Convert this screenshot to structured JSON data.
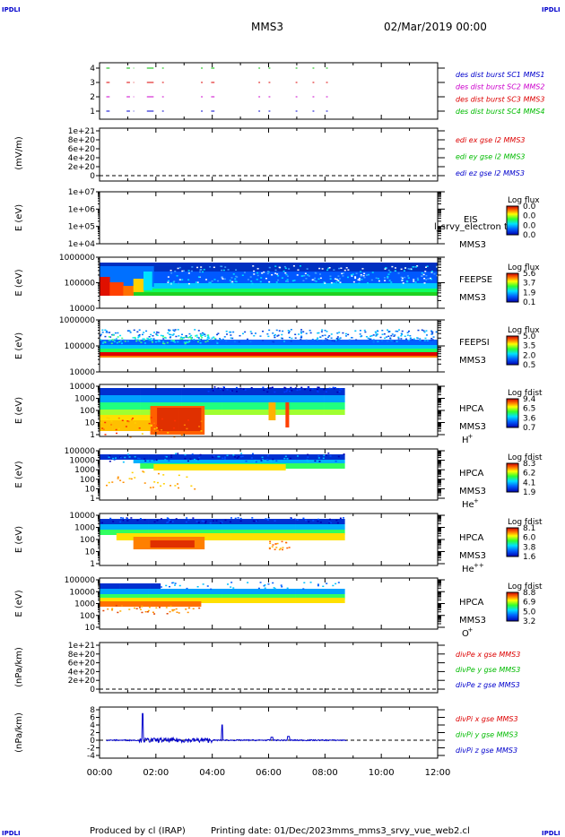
{
  "header": {
    "corner_tl": "IPDLI",
    "corner_tr": "IPDLI",
    "corner_bl": "IPDLI",
    "corner_br": "IPDLI",
    "title": "MMS3",
    "date": "02/Mar/2019 00:00"
  },
  "footer": {
    "produced": "Produced by cl (IRAP)",
    "printing": "Printing date: 01/Dec/2023",
    "file": "mms_mms3_srvy_vue_web2.cl"
  },
  "colors": {
    "red": "#dd0000",
    "green": "#00bb00",
    "blue": "#0000cc",
    "magenta": "#cc00cc"
  },
  "chart_data": {
    "type": "heatmap",
    "x_ticks": [
      "00:00",
      "02:00",
      "04:00",
      "06:00",
      "08:00",
      "10:00",
      "12:00"
    ],
    "x_range_hours": [
      0,
      12
    ],
    "panels": [
      {
        "id": "burst",
        "ylabel": "",
        "yticks": [
          "4",
          "3",
          "2",
          "1"
        ],
        "legend": [
          {
            "text": "des dist burst SC1 MMS1",
            "color": "#0000cc"
          },
          {
            "text": "des dist burst SC2 MMS2",
            "color": "#cc00cc"
          },
          {
            "text": "des dist burst SC3 MMS3",
            "color": "#dd0000"
          },
          {
            "text": "des dist burst SC4 MMS4",
            "color": "#00bb00"
          }
        ]
      },
      {
        "id": "edi",
        "ylabel": "(mV/m)",
        "yticks": [
          "1e+21",
          "8e+20",
          "6e+20",
          "4e+20",
          "2e+20",
          "0"
        ],
        "legend": [
          {
            "text": "edi ex gse l2 MMS3",
            "color": "#dd0000"
          },
          {
            "text": "edi ey gse l2 MMS3",
            "color": "#00bb00"
          },
          {
            "text": "edi ez gse l2 MMS3",
            "color": "#0000cc"
          }
        ]
      },
      {
        "id": "eis",
        "ylabel": "E (eV)",
        "yticks": [
          "1e+07",
          "1e+06",
          "1e+05",
          "1e+04"
        ],
        "instrument": [
          "EIS",
          "MMS3"
        ],
        "overlay_label": "l_srvy_electron to",
        "cbar_title": "Log flux",
        "cbar_ticks": [
          "0.0",
          "0.0",
          "0.0",
          "0.0"
        ]
      },
      {
        "id": "feepse",
        "ylabel": "E (eV)",
        "yticks": [
          "1000000",
          "100000",
          "10000"
        ],
        "instrument": [
          "FEEPSE",
          "MMS3"
        ],
        "cbar_title": "Log flux",
        "cbar_ticks": [
          "5.6",
          "3.7",
          "1.9",
          "0.1"
        ]
      },
      {
        "id": "feepsi",
        "ylabel": "E (eV)",
        "yticks": [
          "1000000",
          "100000",
          "10000"
        ],
        "instrument": [
          "FEEPSI",
          "MMS3"
        ],
        "cbar_title": "Log flux",
        "cbar_ticks": [
          "5.0",
          "3.5",
          "2.0",
          "0.5"
        ]
      },
      {
        "id": "hpca_h",
        "ylabel": "E (eV)",
        "yticks": [
          "10000",
          "1000",
          "100",
          "10",
          "1"
        ],
        "instrument": [
          "HPCA",
          "MMS3"
        ],
        "species": "H",
        "species_sup": "+",
        "cbar_title": "Log fdist",
        "cbar_ticks": [
          "9.4",
          "6.5",
          "3.6",
          "0.7"
        ]
      },
      {
        "id": "hpca_he",
        "ylabel": "E (eV)",
        "yticks": [
          "100000",
          "10000",
          "1000",
          "100",
          "10",
          "1"
        ],
        "instrument": [
          "HPCA",
          "MMS3"
        ],
        "species": "He",
        "species_sup": "+",
        "cbar_title": "Log fdist",
        "cbar_ticks": [
          "8.3",
          "6.2",
          "4.1",
          "1.9"
        ]
      },
      {
        "id": "hpca_he2",
        "ylabel": "E (eV)",
        "yticks": [
          "10000",
          "1000",
          "100",
          "10",
          "1"
        ],
        "instrument": [
          "HPCA",
          "MMS3"
        ],
        "species": "He",
        "species_sup": "++",
        "cbar_title": "Log fdist",
        "cbar_ticks": [
          "8.1",
          "6.0",
          "3.8",
          "1.6"
        ]
      },
      {
        "id": "hpca_o",
        "ylabel": "E (eV)",
        "yticks": [
          "100000",
          "10000",
          "1000",
          "100",
          "10"
        ],
        "instrument": [
          "HPCA",
          "MMS3"
        ],
        "species": "O",
        "species_sup": "+",
        "cbar_title": "Log fdist",
        "cbar_ticks": [
          "8.8",
          "6.9",
          "5.0",
          "3.2"
        ]
      },
      {
        "id": "divpe",
        "ylabel": "(nPa/km)",
        "yticks": [
          "1e+21",
          "8e+20",
          "6e+20",
          "4e+20",
          "2e+20",
          "0"
        ],
        "legend": [
          {
            "text": "divPe x gse MMS3",
            "color": "#dd0000"
          },
          {
            "text": "divPe y gse MMS3",
            "color": "#00bb00"
          },
          {
            "text": "divPe z gse MMS3",
            "color": "#0000cc"
          }
        ]
      },
      {
        "id": "divpi",
        "ylabel": "(nPa/km)",
        "yticks": [
          "8",
          "6",
          "4",
          "2",
          "0",
          "-2",
          "-4"
        ],
        "legend": [
          {
            "text": "divPi x gse MMS3",
            "color": "#dd0000"
          },
          {
            "text": "divPi y gse MMS3",
            "color": "#00bb00"
          },
          {
            "text": "divPi z gse MMS3",
            "color": "#0000cc"
          }
        ]
      }
    ]
  }
}
